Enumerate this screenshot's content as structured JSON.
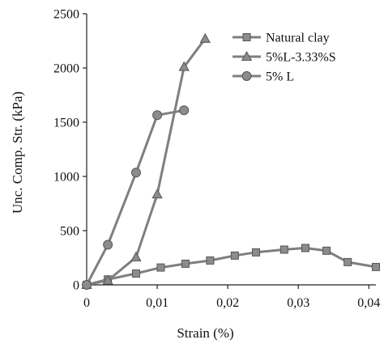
{
  "chart_data": {
    "type": "line",
    "title": "",
    "xlabel": "Strain (%)",
    "ylabel": "Unc. Comp. Str. (kPa)",
    "xlim": [
      0,
      0.041
    ],
    "ylim": [
      0,
      2500
    ],
    "x_ticks": [
      0,
      0.01,
      0.02,
      0.03,
      0.04
    ],
    "x_tick_labels": [
      "0",
      "0,01",
      "0,02",
      "0,03",
      "0,04"
    ],
    "y_ticks": [
      0,
      500,
      1000,
      1500,
      2000,
      2500
    ],
    "y_tick_labels": [
      "0",
      "500",
      "1000",
      "1500",
      "2000",
      "2500"
    ],
    "grid": false,
    "legend_position": "top-right",
    "line_color": "#7f7f7f",
    "marker_fill": "#8c8c8c",
    "marker_stroke": "#555555",
    "series": [
      {
        "name": "Natural clay",
        "marker": "square",
        "x": [
          0,
          0.003,
          0.007,
          0.0105,
          0.014,
          0.0175,
          0.021,
          0.024,
          0.028,
          0.031,
          0.034,
          0.037,
          0.041
        ],
        "y": [
          0,
          50,
          105,
          160,
          195,
          225,
          270,
          300,
          325,
          340,
          315,
          210,
          165
        ]
      },
      {
        "name": "5%L-3.33%S",
        "marker": "triangle",
        "x": [
          0,
          0.003,
          0.007,
          0.01,
          0.0138,
          0.0168
        ],
        "y": [
          0,
          40,
          255,
          835,
          2010,
          2270
        ]
      },
      {
        "name": "5% L",
        "marker": "circle",
        "x": [
          0,
          0.003,
          0.007,
          0.01,
          0.0138
        ],
        "y": [
          0,
          370,
          1035,
          1565,
          1610
        ]
      }
    ]
  }
}
